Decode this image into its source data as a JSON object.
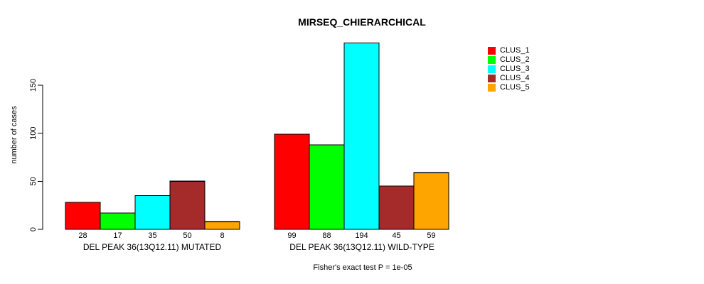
{
  "title": "MIRSEQ_CHIERARCHICAL",
  "footer": "Fisher's exact test P = 1e-05",
  "chart_data": {
    "type": "bar",
    "title": "MIRSEQ_CHIERARCHICAL",
    "xlabel": "",
    "ylabel": "number of cases",
    "ylim": [
      0,
      200
    ],
    "yticks": [
      0,
      50,
      100,
      150
    ],
    "grid": false,
    "legend_position": "top-right",
    "categories": [
      "DEL PEAK 36(13Q12.11) MUTATED",
      "DEL PEAK 36(13Q12.11) WILD-TYPE"
    ],
    "series": [
      {
        "name": "CLUS_1",
        "color": "#FF0000",
        "values": [
          28,
          99
        ]
      },
      {
        "name": "CLUS_2",
        "color": "#00FF00",
        "values": [
          17,
          88
        ]
      },
      {
        "name": "CLUS_3",
        "color": "#00FFFF",
        "values": [
          35,
          194
        ]
      },
      {
        "name": "CLUS_4",
        "color": "#A52A2A",
        "values": [
          50,
          45
        ]
      },
      {
        "name": "CLUS_5",
        "color": "#FFA500",
        "values": [
          8,
          59
        ]
      }
    ],
    "bar_value_labels": true,
    "annotation": "Fisher's exact test P = 1e-05"
  }
}
